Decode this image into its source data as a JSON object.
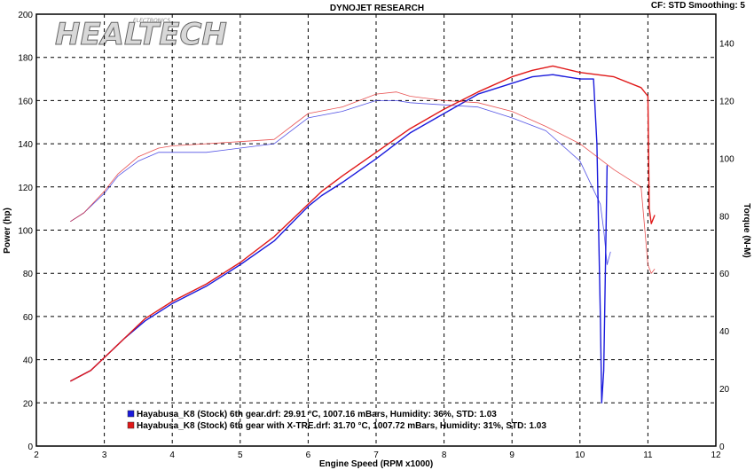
{
  "header": {
    "title": "DYNOJET RESEARCH",
    "info": "CF: STD   Smoothing: 5"
  },
  "logo": {
    "text": "HEALTECH",
    "subtext": "ELECTRONICS"
  },
  "colors": {
    "stock": "#1a1adc",
    "xtre": "#e01818",
    "background": "#ffffff",
    "grid": "#000000"
  },
  "chart_data": {
    "type": "line",
    "title": "DYNOJET RESEARCH",
    "xlabel": "Engine Speed (RPM x1000)",
    "ylabel": "Power (hp)",
    "y2label": "Torque (N-M)",
    "xlim": [
      2,
      12
    ],
    "ylim": [
      0,
      200
    ],
    "y2lim": [
      0,
      150
    ],
    "xticks": [
      "2",
      "3",
      "4",
      "5",
      "6",
      "7",
      "8",
      "9",
      "10",
      "11",
      "12"
    ],
    "yticks": [
      "0",
      "20",
      "40",
      "60",
      "80",
      "100",
      "120",
      "140",
      "160",
      "180",
      "200"
    ],
    "y2ticks": [
      "0",
      "20",
      "40",
      "60",
      "80",
      "100",
      "120",
      "140"
    ],
    "grid": true,
    "legend_position": "bottom-left",
    "series": [
      {
        "name": "Hayabusa_K8 (Stock) 6th gear.drf: 29.91 °C, 1007.16 mBars, Humidity: 36%, STD: 1.03",
        "color": "#1a1adc",
        "power": {
          "x": [
            2.5,
            2.8,
            3.0,
            3.3,
            3.6,
            4.0,
            4.5,
            5.0,
            5.5,
            6.0,
            6.2,
            6.5,
            7.0,
            7.5,
            8.0,
            8.5,
            9.0,
            9.3,
            9.6,
            10.0,
            10.2,
            10.25,
            10.3,
            10.32,
            10.35,
            10.4
          ],
          "y": [
            30,
            35,
            41,
            50,
            58,
            66,
            74,
            84,
            95,
            111,
            116,
            122,
            133,
            145,
            154,
            163,
            168,
            171,
            172,
            170,
            170,
            140,
            60,
            20,
            35,
            130
          ]
        },
        "torque": {
          "x": [
            2.5,
            2.7,
            3.0,
            3.2,
            3.5,
            3.8,
            4.0,
            4.5,
            5.0,
            5.5,
            6.0,
            6.5,
            7.0,
            7.3,
            7.5,
            8.0,
            8.5,
            9.0,
            9.5,
            10.0,
            10.3,
            10.35,
            10.4,
            10.45
          ],
          "y": [
            104,
            108,
            117,
            125,
            132,
            136,
            136,
            136,
            138,
            140,
            152,
            155,
            160,
            160,
            159,
            158,
            157,
            152,
            146,
            132,
            112,
            100,
            84,
            90
          ]
        }
      },
      {
        "name": "Hayabusa_K8 (Stock) 6th gear with X-TRE.drf: 31.70 °C, 1007.72 mBars, Humidity: 31%, STD: 1.03",
        "color": "#e01818",
        "power": {
          "x": [
            2.5,
            2.8,
            3.0,
            3.3,
            3.6,
            4.0,
            4.5,
            5.0,
            5.5,
            6.0,
            6.2,
            6.5,
            7.0,
            7.5,
            8.0,
            8.5,
            9.0,
            9.3,
            9.6,
            10.0,
            10.5,
            10.9,
            11.0,
            11.02,
            11.05,
            11.1
          ],
          "y": [
            30,
            35,
            41,
            50,
            59,
            67,
            75,
            85,
            97,
            112,
            118,
            125,
            136,
            147,
            156,
            164,
            171,
            174,
            176,
            173,
            171,
            166,
            162,
            110,
            103,
            107
          ]
        },
        "torque": {
          "x": [
            2.5,
            2.7,
            3.0,
            3.2,
            3.5,
            3.8,
            4.0,
            4.5,
            5.0,
            5.5,
            6.0,
            6.5,
            7.0,
            7.3,
            7.5,
            8.0,
            8.5,
            9.0,
            9.5,
            10.0,
            10.5,
            10.9,
            11.0,
            11.05,
            11.1
          ],
          "y": [
            104,
            108,
            118,
            126,
            134,
            138,
            139,
            140,
            141,
            142,
            154,
            157,
            163,
            164,
            162,
            160,
            159,
            155,
            148,
            140,
            128,
            120,
            84,
            80,
            82
          ]
        }
      }
    ]
  }
}
